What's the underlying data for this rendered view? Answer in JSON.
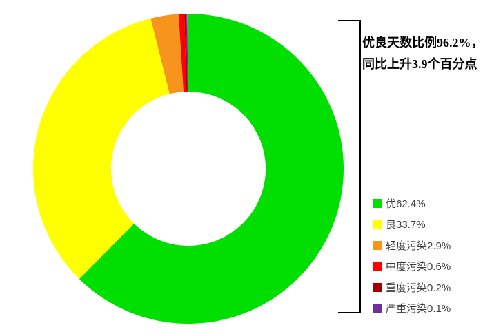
{
  "chart_data": {
    "type": "pie",
    "subtype": "donut",
    "title": "",
    "categories": [
      "优",
      "良",
      "轻度污染",
      "中度污染",
      "重度污染",
      "严重污染"
    ],
    "values": [
      62.4,
      33.7,
      2.9,
      0.6,
      0.2,
      0.1
    ],
    "unit": "%",
    "colors": [
      "#00df00",
      "#ffff00",
      "#f7941e",
      "#ff0000",
      "#a00000",
      "#7030a0"
    ],
    "start_angle_deg": 0,
    "direction": "clockwise",
    "inner_radius_ratio": 0.5,
    "legend_position": "right",
    "annotation": "优良天数比例96.2%，同比上升3.9个百分点"
  },
  "annotation": {
    "line1": "优良天数比例96.2%，",
    "line2": "同比上升3.9个百分点"
  },
  "legend": {
    "items": [
      {
        "label": "优62.4%",
        "color": "#00df00"
      },
      {
        "label": "良33.7%",
        "color": "#ffff00"
      },
      {
        "label": "轻度污染2.9%",
        "color": "#f7941e"
      },
      {
        "label": "中度污染0.6%",
        "color": "#ff0000"
      },
      {
        "label": "重度污染0.2%",
        "color": "#a00000"
      },
      {
        "label": "严重污染0.1%",
        "color": "#7030a0"
      }
    ]
  }
}
